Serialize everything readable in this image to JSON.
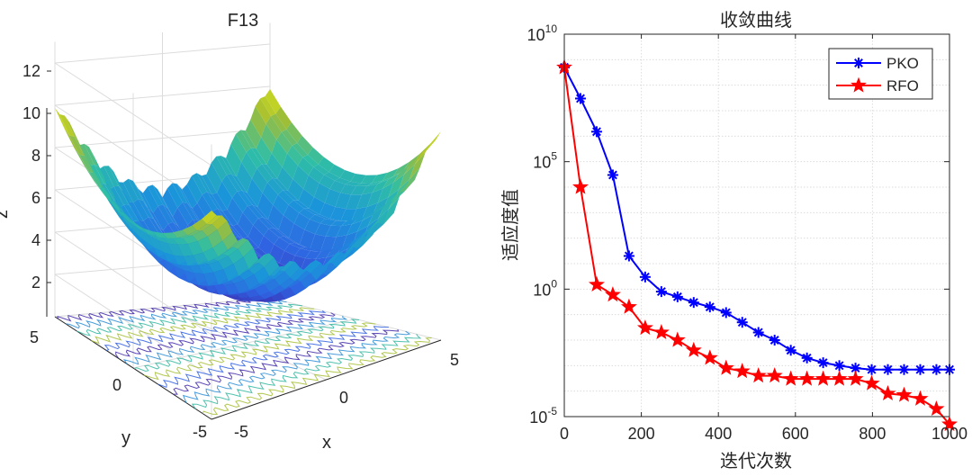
{
  "chart_data": [
    {
      "type": "surface3d",
      "title": "F13",
      "xlabel": "x",
      "ylabel": "y",
      "zlabel": "z",
      "xlim": [
        -5,
        5
      ],
      "ylim": [
        -5,
        5
      ],
      "zlim": [
        0,
        13
      ],
      "x_ticks": [
        "-5",
        "0",
        "5"
      ],
      "y_ticks": [
        "-5",
        "0",
        "5"
      ],
      "z_ticks": [
        "2",
        "4",
        "6",
        "8",
        "10",
        "12"
      ],
      "colormap": "parula",
      "contour_projection": true,
      "grid": true
    },
    {
      "type": "line",
      "title": "收敛曲线",
      "xlabel": "迭代次数",
      "ylabel": "适应度值",
      "yscale": "log",
      "xlim": [
        0,
        1000
      ],
      "ylim": [
        1e-05,
        10000000000.0
      ],
      "x_ticks": [
        "0",
        "200",
        "400",
        "600",
        "800",
        "1000"
      ],
      "y_ticks": [
        {
          "base": "10",
          "exp": "-5",
          "value": 1e-05
        },
        {
          "base": "10",
          "exp": "0",
          "value": 1
        },
        {
          "base": "10",
          "exp": "5",
          "value": 100000.0
        },
        {
          "base": "10",
          "exp": "10",
          "value": 10000000000.0
        }
      ],
      "grid": true,
      "legend_position": "top-right",
      "x": [
        0,
        42,
        84,
        126,
        168,
        210,
        252,
        294,
        336,
        378,
        420,
        462,
        504,
        546,
        588,
        630,
        672,
        714,
        756,
        798,
        840,
        882,
        924,
        966,
        1000
      ],
      "series": [
        {
          "name": "PKO",
          "color": "#0000ff",
          "marker": "asterisk",
          "values": [
            500000000.0,
            30000000.0,
            1500000.0,
            30000.0,
            20,
            3,
            0.8,
            0.5,
            0.3,
            0.2,
            0.12,
            0.05,
            0.02,
            0.01,
            0.004,
            0.002,
            0.0013,
            0.001,
            0.0008,
            0.0007,
            0.0007,
            0.0007,
            0.0007,
            0.0007,
            0.0007
          ]
        },
        {
          "name": "RFO",
          "color": "#ff0000",
          "marker": "pentagram",
          "values": [
            500000000.0,
            10000.0,
            1.5,
            0.6,
            0.2,
            0.03,
            0.02,
            0.01,
            0.004,
            0.002,
            0.0008,
            0.0006,
            0.0004,
            0.0004,
            0.0003,
            0.0003,
            0.0003,
            0.0003,
            0.0003,
            0.0002,
            8e-05,
            7e-05,
            5e-05,
            2e-05,
            5e-06
          ]
        }
      ]
    }
  ]
}
